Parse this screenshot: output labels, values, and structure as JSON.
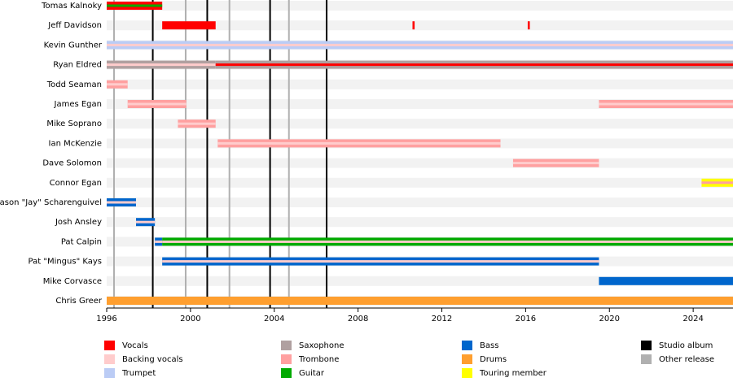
{
  "chart_data": {
    "type": "timeline",
    "xlim": [
      1996,
      2025.9
    ],
    "xticks": [
      1996,
      2000,
      2004,
      2008,
      2012,
      2016,
      2020,
      2024
    ],
    "legend": [
      {
        "name": "Vocals",
        "color": "#ff0000"
      },
      {
        "name": "Backing vocals",
        "color": "#ffcccc"
      },
      {
        "name": "Trumpet",
        "color": "#bbccf5"
      },
      {
        "name": "Saxophone",
        "color": "#b0a0a0"
      },
      {
        "name": "Trombone",
        "color": "#ffa0a0"
      },
      {
        "name": "Guitar",
        "color": "#00aa00"
      },
      {
        "name": "Bass",
        "color": "#0066cc"
      },
      {
        "name": "Drums",
        "color": "#ff9f2f"
      },
      {
        "name": "Touring member",
        "color": "#ffff00"
      },
      {
        "name": "Studio album",
        "color": "#000000"
      },
      {
        "name": "Other release",
        "color": "#b0b0b0"
      }
    ],
    "releases": [
      {
        "kind": "Other release",
        "year": 1996.35
      },
      {
        "kind": "Studio album",
        "year": 1998.2
      },
      {
        "kind": "Other release",
        "year": 1999.77
      },
      {
        "kind": "Studio album",
        "year": 2000.8
      },
      {
        "kind": "Other release",
        "year": 2001.86
      },
      {
        "kind": "Studio album",
        "year": 2003.8
      },
      {
        "kind": "Other release",
        "year": 2004.7
      },
      {
        "kind": "Studio album",
        "year": 2006.5
      }
    ],
    "rows": [
      {
        "name": "Tomas Kalnoky",
        "spans": [
          {
            "start": 1996,
            "end": 1998.65,
            "role": "Vocals",
            "stripe": "Guitar"
          }
        ]
      },
      {
        "name": "Jeff Davidson",
        "spans": [
          {
            "start": 1998.65,
            "end": 2001.2,
            "role": "Vocals"
          },
          {
            "start": 2010.6,
            "end": 2010.7,
            "role": "Vocals"
          },
          {
            "start": 2016.1,
            "end": 2016.2,
            "role": "Vocals"
          }
        ]
      },
      {
        "name": "Kevin Gunther",
        "spans": [
          {
            "start": 1996,
            "end": 2025.9,
            "role": "Trumpet",
            "stripe": "Backing vocals"
          }
        ]
      },
      {
        "name": "Ryan Eldred",
        "spans": [
          {
            "start": 1996,
            "end": 2001.2,
            "role": "Saxophone",
            "stripe": "Backing vocals"
          },
          {
            "start": 2001.2,
            "end": 2025.9,
            "role": "Saxophone",
            "stripe": "Vocals"
          }
        ]
      },
      {
        "name": "Todd Seaman",
        "spans": [
          {
            "start": 1996,
            "end": 1997.0,
            "role": "Trombone",
            "stripe": "Backing vocals"
          }
        ]
      },
      {
        "name": "James Egan",
        "spans": [
          {
            "start": 1997.0,
            "end": 1999.8,
            "role": "Trombone",
            "stripe": "Backing vocals"
          },
          {
            "start": 2019.5,
            "end": 2025.9,
            "role": "Trombone",
            "stripe": "Backing vocals"
          }
        ]
      },
      {
        "name": "Mike Soprano",
        "spans": [
          {
            "start": 1999.4,
            "end": 2001.2,
            "role": "Trombone",
            "stripe": "Backing vocals"
          }
        ]
      },
      {
        "name": "Ian McKenzie",
        "spans": [
          {
            "start": 2001.3,
            "end": 2014.8,
            "role": "Trombone",
            "stripe": "Backing vocals"
          }
        ]
      },
      {
        "name": "Dave Solomon",
        "spans": [
          {
            "start": 2015.4,
            "end": 2019.5,
            "role": "Trombone",
            "stripe": "Backing vocals"
          }
        ]
      },
      {
        "name": "Connor Egan",
        "spans": [
          {
            "start": 2024.4,
            "end": 2025.9,
            "role": "Touring member",
            "stripe": "Trombone"
          }
        ]
      },
      {
        "name": "Jason \"Jay\" Scharenguivel",
        "spans": [
          {
            "start": 1996,
            "end": 1997.4,
            "role": "Bass",
            "stripe": "Backing vocals"
          }
        ]
      },
      {
        "name": "Josh Ansley",
        "spans": [
          {
            "start": 1997.4,
            "end": 1998.3,
            "role": "Bass",
            "stripe": "Backing vocals"
          }
        ]
      },
      {
        "name": "Pat Calpin",
        "spans": [
          {
            "start": 1998.3,
            "end": 1998.65,
            "role": "Bass",
            "stripe": "Backing vocals"
          },
          {
            "start": 1998.65,
            "end": 2025.9,
            "role": "Guitar",
            "stripe": "Backing vocals"
          }
        ]
      },
      {
        "name": "Pat \"Mingus\" Kays",
        "spans": [
          {
            "start": 1998.65,
            "end": 2019.5,
            "role": "Bass",
            "stripe": "Backing vocals"
          }
        ]
      },
      {
        "name": "Mike Corvasce",
        "spans": [
          {
            "start": 2019.5,
            "end": 2025.9,
            "role": "Bass"
          }
        ]
      },
      {
        "name": "Chris Greer",
        "spans": [
          {
            "start": 1996,
            "end": 2025.9,
            "role": "Drums"
          }
        ]
      }
    ]
  }
}
